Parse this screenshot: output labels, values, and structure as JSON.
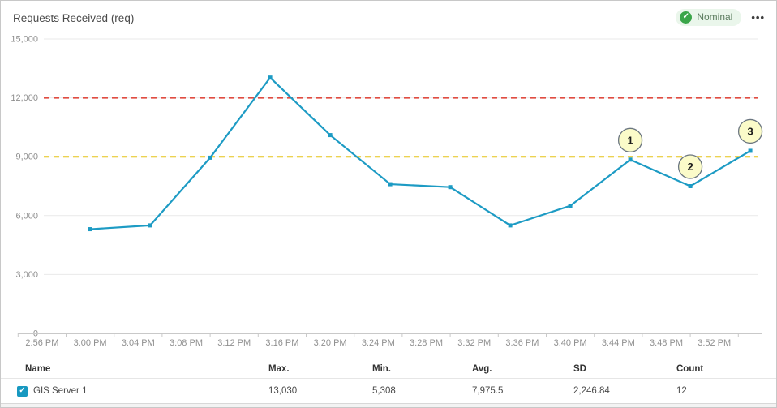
{
  "header": {
    "title": "Requests Received (req)",
    "status_label": "Nominal",
    "status_color": "#3aa549",
    "menu_icon_glyph": "•••"
  },
  "icons": {
    "check": "✓"
  },
  "table": {
    "columns": [
      "Name",
      "Max.",
      "Min.",
      "Avg.",
      "SD",
      "Count"
    ],
    "rows": [
      {
        "checked": true,
        "name": "GIS Server 1",
        "max": "13,030",
        "min": "5,308",
        "avg": "7,975.5",
        "sd": "2,246.84",
        "count": "12"
      }
    ]
  },
  "chart_data": {
    "type": "line",
    "title": "Requests Received (req)",
    "ylabel": "",
    "xlabel": "",
    "ylim": [
      0,
      15000
    ],
    "y_ticks": [
      0,
      3000,
      6000,
      9000,
      12000,
      15000
    ],
    "grid": true,
    "x_tick_labels": [
      "2:56 PM",
      "3:00 PM",
      "3:04 PM",
      "3:08 PM",
      "3:12 PM",
      "3:16 PM",
      "3:20 PM",
      "3:24 PM",
      "3:28 PM",
      "3:32 PM",
      "3:36 PM",
      "3:40 PM",
      "3:44 PM",
      "3:48 PM",
      "3:52 PM"
    ],
    "series": [
      {
        "name": "GIS Server 1",
        "color": "#1d9bc4",
        "points": [
          {
            "time": "3:00 PM",
            "value": 5308
          },
          {
            "time": "3:05 PM",
            "value": 5500
          },
          {
            "time": "3:10 PM",
            "value": 8950
          },
          {
            "time": "3:15 PM",
            "value": 13030
          },
          {
            "time": "3:20 PM",
            "value": 10100
          },
          {
            "time": "3:25 PM",
            "value": 7600
          },
          {
            "time": "3:30 PM",
            "value": 7450
          },
          {
            "time": "3:35 PM",
            "value": 5500
          },
          {
            "time": "3:40 PM",
            "value": 6500
          },
          {
            "time": "3:45 PM",
            "value": 8850
          },
          {
            "time": "3:50 PM",
            "value": 7500
          },
          {
            "time": "3:55 PM",
            "value": 9300
          }
        ]
      }
    ],
    "thresholds": [
      {
        "name": "critical",
        "value": 12000,
        "color": "#e04c41",
        "style": "dashed"
      },
      {
        "name": "warning",
        "value": 9000,
        "color": "#e5c417",
        "style": "dashed"
      }
    ],
    "annotations": [
      {
        "label": "1",
        "point_index": 9
      },
      {
        "label": "2",
        "point_index": 10
      },
      {
        "label": "3",
        "point_index": 11
      }
    ],
    "annotation_style": {
      "fill": "#fbfbc9",
      "stroke": "#6b7680"
    }
  }
}
